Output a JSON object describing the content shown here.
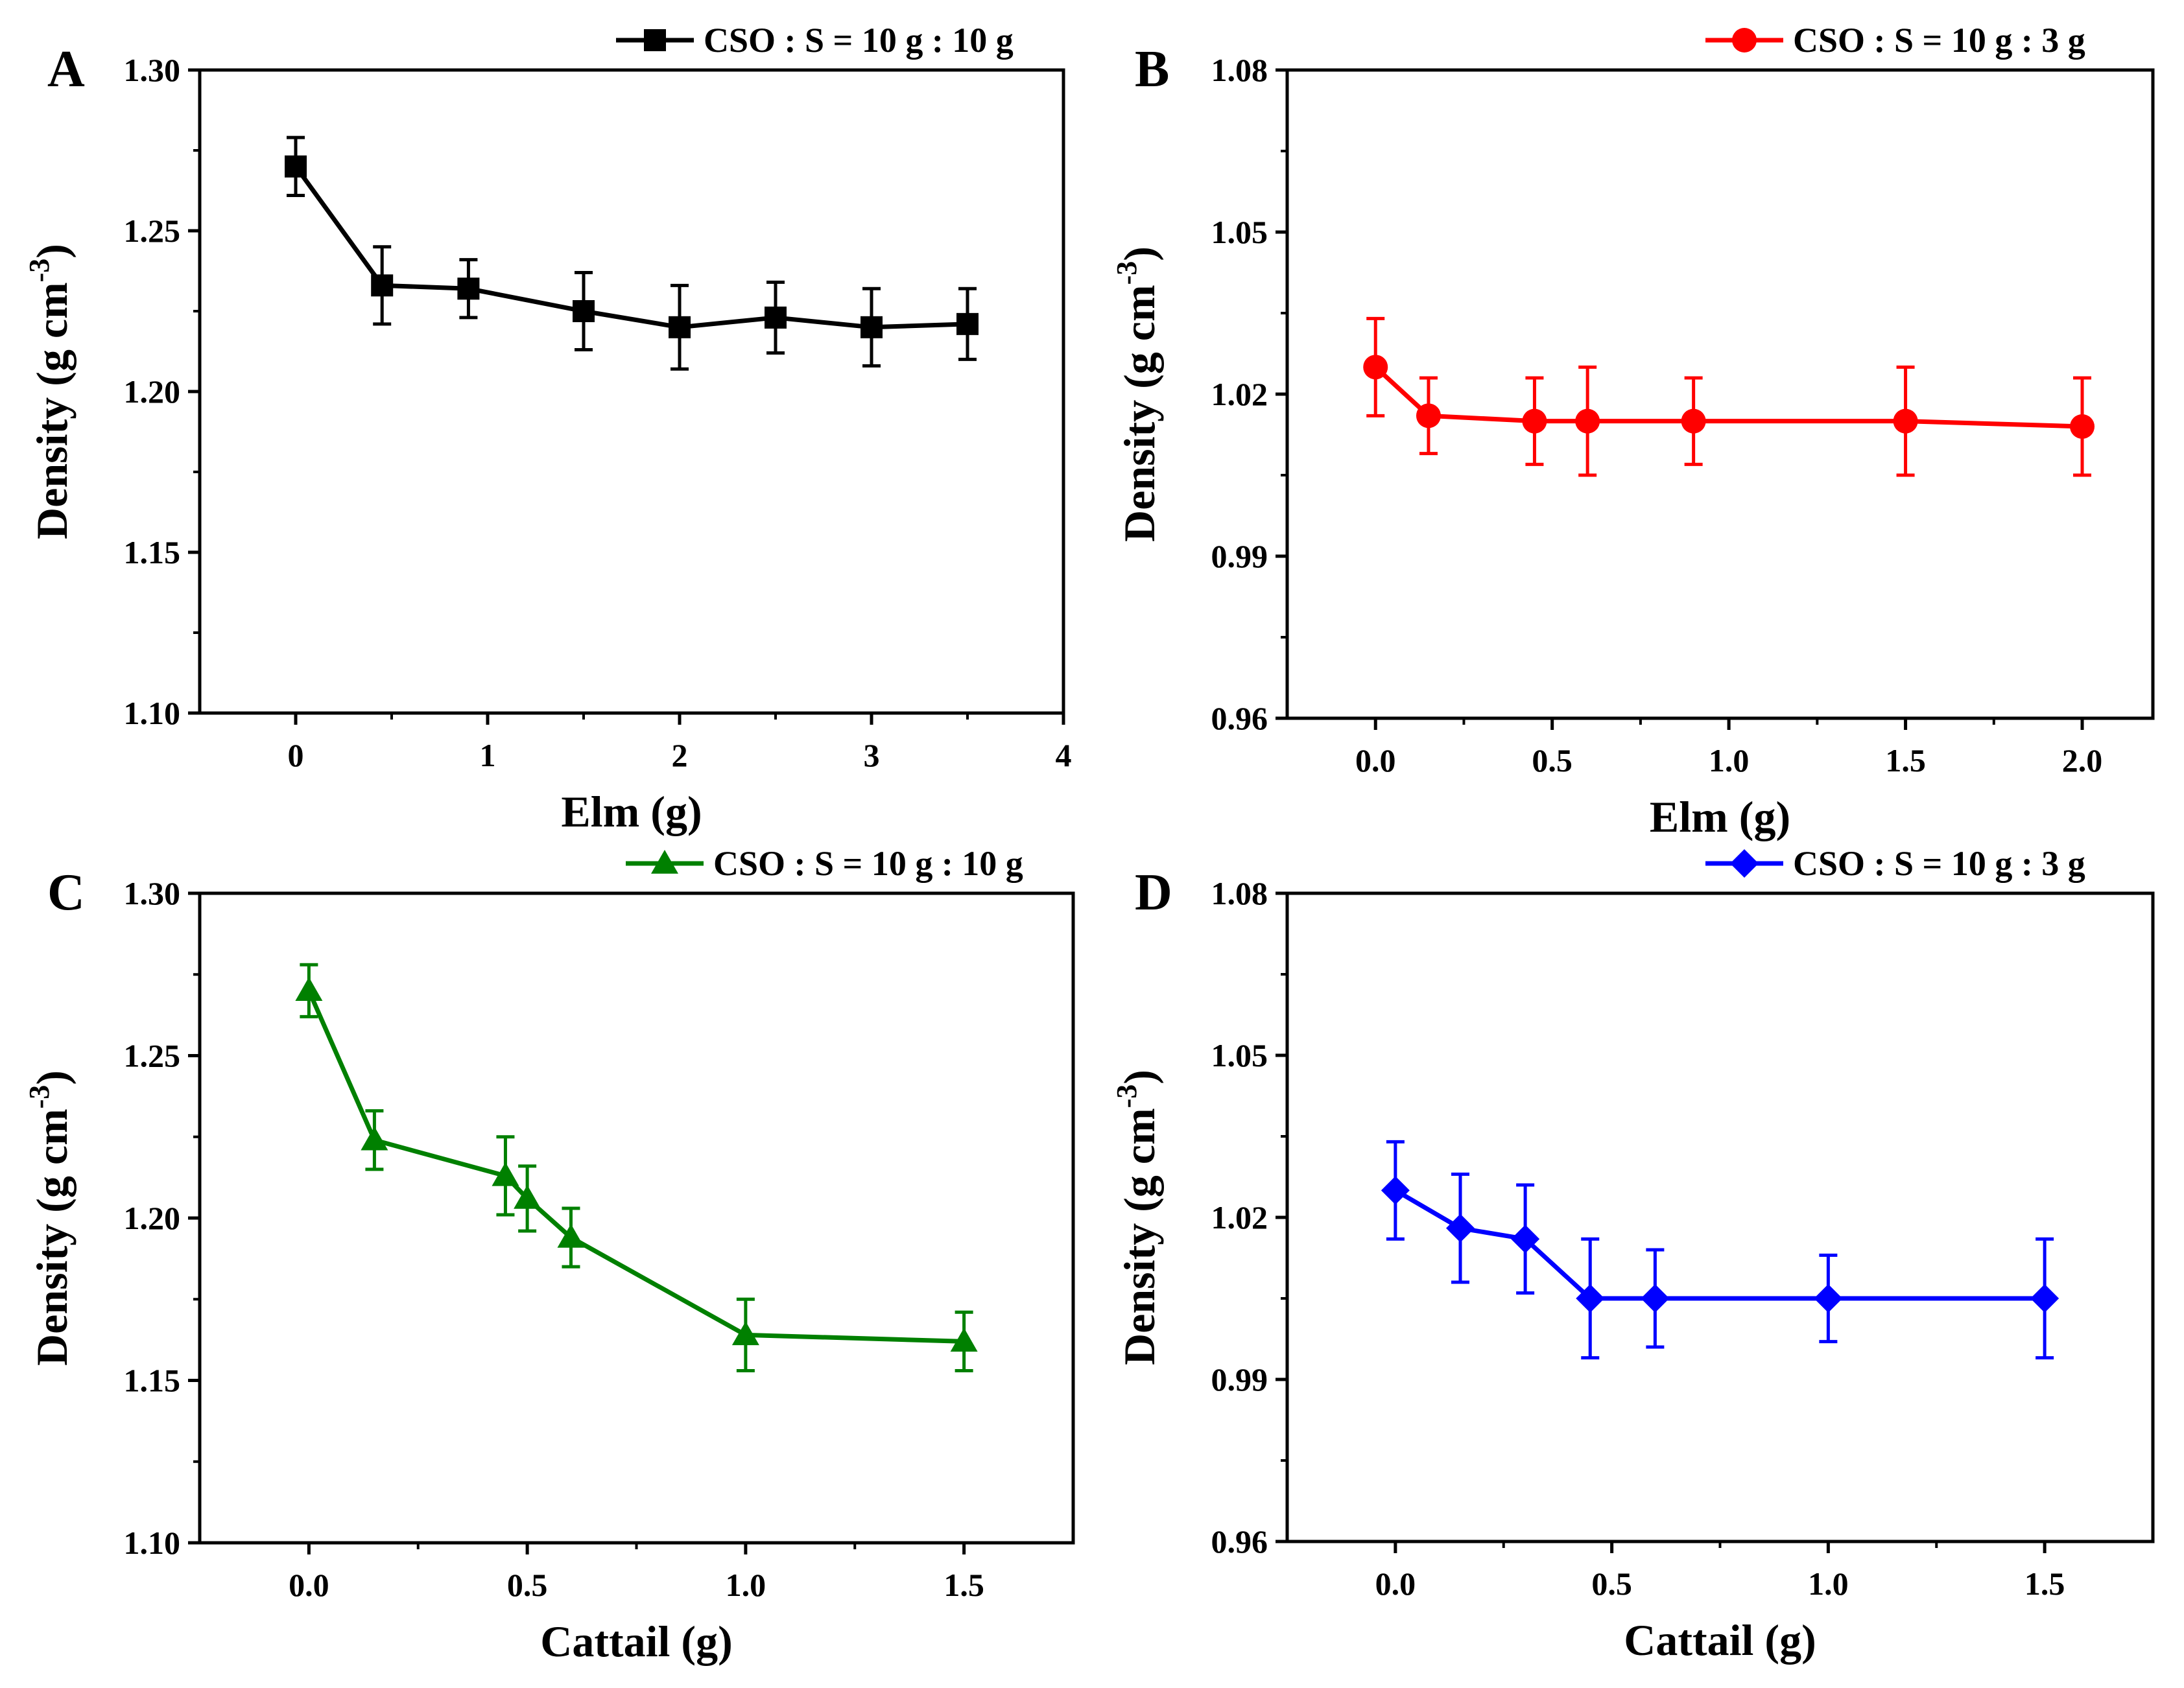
{
  "chart_data": [
    {
      "panel": "A",
      "type": "line",
      "color": "#000000",
      "marker": "square",
      "legend": "CSO : S = 10 g : 10 g",
      "xlabel": "Elm (g)",
      "ylabel_main": "Density (g cm",
      "ylabel_sup": "-3",
      "ylabel_close": ")",
      "xlim": [
        -0.5,
        4
      ],
      "ylim": [
        1.1,
        1.3
      ],
      "xticks": [
        "0",
        "1",
        "2",
        "3",
        "4"
      ],
      "xtick_values": [
        0,
        1,
        2,
        3,
        4
      ],
      "yticks": [
        "1.10",
        "1.15",
        "1.20",
        "1.25",
        "1.30"
      ],
      "ytick_values": [
        1.1,
        1.15,
        1.2,
        1.25,
        1.3
      ],
      "x": [
        0,
        0.45,
        0.9,
        1.5,
        2,
        2.5,
        3,
        3.5
      ],
      "y": [
        1.27,
        1.233,
        1.232,
        1.225,
        1.22,
        1.223,
        1.22,
        1.221
      ],
      "err": [
        0.009,
        0.012,
        0.009,
        0.012,
        0.013,
        0.011,
        0.012,
        0.011
      ]
    },
    {
      "panel": "B",
      "type": "line",
      "color": "#ff0000",
      "marker": "circle",
      "legend": "CSO : S = 10 g : 3 g",
      "xlabel": "Elm (g)",
      "ylabel_main": "Density (g cm",
      "ylabel_sup": "-3",
      "ylabel_close": ")",
      "xlim": [
        -0.25,
        2.2
      ],
      "ylim": [
        0.96,
        1.08
      ],
      "xticks": [
        "0.0",
        "0.5",
        "1.0",
        "1.5",
        "2.0"
      ],
      "xtick_values": [
        0,
        0.5,
        1.0,
        1.5,
        2.0
      ],
      "yticks": [
        "0.96",
        "0.99",
        "1.02",
        "1.05",
        "1.08"
      ],
      "ytick_values": [
        0.96,
        0.99,
        1.02,
        1.05,
        1.08
      ],
      "x": [
        0,
        0.15,
        0.45,
        0.6,
        0.9,
        1.5,
        2.0
      ],
      "y": [
        1.025,
        1.016,
        1.015,
        1.015,
        1.015,
        1.015,
        1.014
      ],
      "err": [
        0.009,
        0.007,
        0.008,
        0.01,
        0.008,
        0.01,
        0.009
      ]
    },
    {
      "panel": "C",
      "type": "line",
      "color": "#008000",
      "marker": "triangle",
      "legend": "CSO : S = 10 g : 10 g",
      "xlabel": "Cattail (g)",
      "ylabel_main": "Density (g cm",
      "ylabel_sup": "-3",
      "ylabel_close": ")",
      "xlim": [
        -0.25,
        1.75
      ],
      "ylim": [
        1.1,
        1.3
      ],
      "xticks": [
        "0.0",
        "0.5",
        "1.0",
        "1.5"
      ],
      "xtick_values": [
        0,
        0.5,
        1.0,
        1.5
      ],
      "yticks": [
        "1.10",
        "1.15",
        "1.20",
        "1.25",
        "1.30"
      ],
      "ytick_values": [
        1.1,
        1.15,
        1.2,
        1.25,
        1.3
      ],
      "x": [
        0,
        0.15,
        0.45,
        0.5,
        0.6,
        1.0,
        1.5
      ],
      "y": [
        1.27,
        1.224,
        1.213,
        1.206,
        1.194,
        1.164,
        1.162
      ],
      "err": [
        0.008,
        0.009,
        0.012,
        0.01,
        0.009,
        0.011,
        0.009
      ]
    },
    {
      "panel": "D",
      "type": "line",
      "color": "#0000ff",
      "marker": "diamond",
      "legend": "CSO : S = 10 g : 3 g",
      "xlabel": "Cattail (g)",
      "ylabel_main": "Density (g cm",
      "ylabel_sup": "-3",
      "ylabel_close": ")",
      "xlim": [
        -0.25,
        1.75
      ],
      "ylim": [
        0.96,
        1.08
      ],
      "xticks": [
        "0.0",
        "0.5",
        "1.0",
        "1.5"
      ],
      "xtick_values": [
        0,
        0.5,
        1.0,
        1.5
      ],
      "yticks": [
        "0.96",
        "0.99",
        "1.02",
        "1.05",
        "1.08"
      ],
      "ytick_values": [
        0.96,
        0.99,
        1.02,
        1.05,
        1.08
      ],
      "x": [
        0,
        0.15,
        0.3,
        0.45,
        0.6,
        1.0,
        1.5
      ],
      "y": [
        1.025,
        1.018,
        1.016,
        1.005,
        1.005,
        1.005,
        1.005
      ],
      "err": [
        0.009,
        0.01,
        0.01,
        0.011,
        0.009,
        0.008,
        0.011
      ]
    }
  ]
}
